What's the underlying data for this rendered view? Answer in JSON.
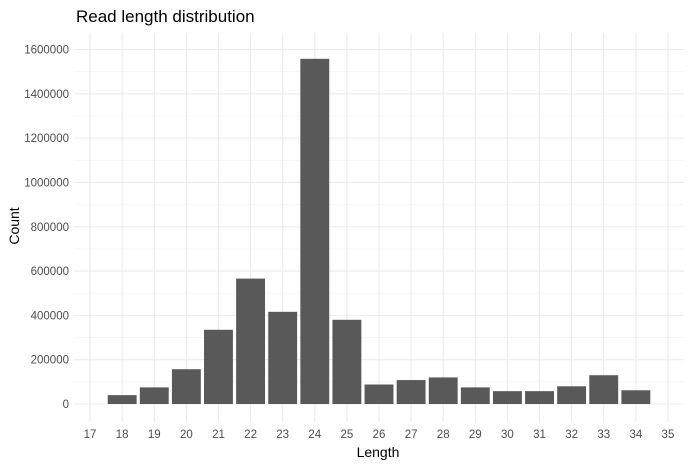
{
  "chart_data": {
    "type": "bar",
    "title": "Read length distribution",
    "xlabel": "Length",
    "ylabel": "Count",
    "categories": [
      "17",
      "18",
      "19",
      "20",
      "21",
      "22",
      "23",
      "24",
      "25",
      "26",
      "27",
      "28",
      "29",
      "30",
      "31",
      "32",
      "33",
      "34",
      "35"
    ],
    "values": [
      0,
      40000,
      75000,
      157000,
      335000,
      566000,
      416000,
      1558000,
      380000,
      88000,
      108000,
      120000,
      75000,
      58000,
      58000,
      80000,
      130000,
      62000,
      0
    ],
    "y_ticks": [
      "0",
      "200000",
      "400000",
      "600000",
      "800000",
      "1000000",
      "1200000",
      "1400000",
      "1600000"
    ],
    "ylim": [
      -60000,
      1680000
    ],
    "grid": true,
    "colors": {
      "bar": "#595959",
      "grid": "#ebebeb"
    }
  }
}
